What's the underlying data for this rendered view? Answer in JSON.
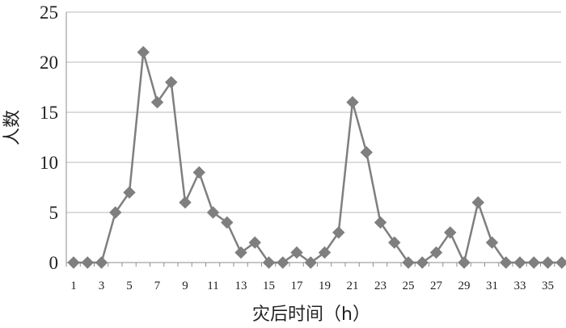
{
  "chart_data": {
    "type": "line",
    "xlabel": "灾后时间（h）",
    "ylabel": "人数",
    "ylim": [
      0,
      25
    ],
    "y_ticks": [
      "0",
      "5",
      "10",
      "15",
      "20",
      "25"
    ],
    "x_tick_labels": [
      "1",
      "3",
      "5",
      "7",
      "9",
      "11",
      "13",
      "15",
      "17",
      "19",
      "21",
      "23",
      "25",
      "27",
      "29",
      "31",
      "33",
      "35"
    ],
    "grid": "horizontal",
    "marker": "diamond",
    "color": "#7f7f7f",
    "series": [
      {
        "x": [
          1,
          2,
          3,
          4,
          5,
          6,
          7,
          8,
          9,
          10,
          11,
          12,
          13,
          14,
          15,
          16,
          17,
          18,
          19,
          20,
          21,
          22,
          23,
          24,
          25,
          26,
          27,
          28,
          29,
          30,
          31,
          32,
          33,
          34,
          35,
          36
        ],
        "values": [
          0,
          0,
          0,
          5,
          7,
          21,
          16,
          18,
          6,
          9,
          5,
          4,
          1,
          2,
          0,
          0,
          1,
          0,
          1,
          3,
          16,
          11,
          4,
          2,
          0,
          0,
          1,
          3,
          0,
          6,
          2,
          0,
          0,
          0,
          0,
          0
        ]
      }
    ]
  }
}
